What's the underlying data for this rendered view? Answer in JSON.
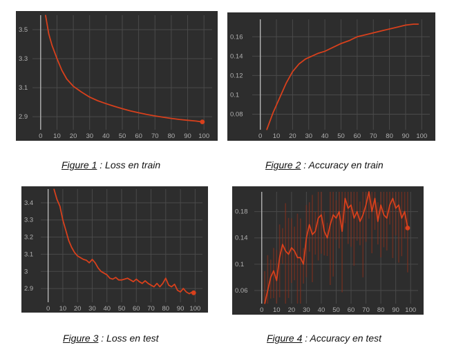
{
  "figures": [
    {
      "caption_fig": "Figure 1",
      "caption_text": " : Loss en train"
    },
    {
      "caption_fig": "Figure 2",
      "caption_text": " : Accuracy en train"
    },
    {
      "caption_fig": "Figure 3",
      "caption_text": " : Loss en test"
    },
    {
      "caption_fig": "Figure 4",
      "caption_text": " : Accuracy en test"
    }
  ],
  "colors": {
    "panel_bg": "#2d2d2d",
    "grid": "#4a4a4a",
    "axis": "#bdbdbd",
    "tick_text": "#b0b0b0",
    "line": "#d8401c",
    "noise": "#8a2e1a"
  },
  "chart_data": [
    {
      "type": "line",
      "title": "",
      "xlabel": "",
      "ylabel": "",
      "xlim": [
        -5,
        105
      ],
      "ylim": [
        2.81,
        3.6
      ],
      "xticks": [
        0,
        10,
        20,
        30,
        40,
        50,
        60,
        70,
        80,
        90,
        100
      ],
      "yticks": [
        2.9,
        3.1,
        3.3,
        3.5
      ],
      "grid": true,
      "end_marker": true,
      "series": [
        {
          "x": [
            3,
            5,
            7,
            10,
            13,
            16,
            20,
            25,
            30,
            35,
            40,
            45,
            50,
            55,
            60,
            65,
            70,
            75,
            80,
            85,
            90,
            95,
            99
          ],
          "y": [
            3.6,
            3.47,
            3.39,
            3.3,
            3.22,
            3.16,
            3.11,
            3.07,
            3.035,
            3.01,
            2.99,
            2.972,
            2.955,
            2.94,
            2.927,
            2.915,
            2.905,
            2.896,
            2.888,
            2.881,
            2.875,
            2.87,
            2.864
          ]
        }
      ]
    },
    {
      "type": "line",
      "title": "",
      "xlabel": "",
      "ylabel": "",
      "xlim": [
        -5,
        105
      ],
      "ylim": [
        0.064,
        0.178
      ],
      "xticks": [
        0,
        10,
        20,
        30,
        40,
        50,
        60,
        70,
        80,
        90,
        100
      ],
      "yticks": [
        0.08,
        0.1,
        0.12,
        0.14,
        0.16
      ],
      "grid": true,
      "end_marker": false,
      "series": [
        {
          "x": [
            4,
            8,
            12,
            16,
            20,
            24,
            28,
            32,
            36,
            40,
            45,
            50,
            55,
            60,
            65,
            70,
            75,
            80,
            85,
            90,
            95,
            98
          ],
          "y": [
            0.064,
            0.082,
            0.097,
            0.112,
            0.124,
            0.132,
            0.137,
            0.14,
            0.143,
            0.145,
            0.149,
            0.153,
            0.156,
            0.16,
            0.162,
            0.164,
            0.166,
            0.168,
            0.17,
            0.172,
            0.173,
            0.173
          ]
        }
      ]
    },
    {
      "type": "line",
      "title": "",
      "xlabel": "",
      "ylabel": "",
      "xlim": [
        -5,
        105
      ],
      "ylim": [
        2.82,
        3.48
      ],
      "xticks": [
        0,
        10,
        20,
        30,
        40,
        50,
        60,
        70,
        80,
        90,
        100
      ],
      "yticks": [
        2.9,
        3,
        3.1,
        3.2,
        3.3,
        3.4
      ],
      "grid": true,
      "end_marker": true,
      "series": [
        {
          "x": [
            4,
            6,
            8,
            10,
            12,
            14,
            16,
            18,
            20,
            22,
            24,
            26,
            28,
            30,
            32,
            34,
            36,
            38,
            40,
            42,
            44,
            46,
            48,
            50,
            52,
            54,
            56,
            58,
            60,
            62,
            64,
            66,
            68,
            70,
            72,
            74,
            76,
            78,
            80,
            82,
            84,
            86,
            88,
            90,
            92,
            94,
            96,
            98,
            99
          ],
          "y": [
            3.48,
            3.42,
            3.38,
            3.3,
            3.24,
            3.18,
            3.14,
            3.11,
            3.09,
            3.08,
            3.07,
            3.065,
            3.05,
            3.07,
            3.05,
            3.02,
            3.0,
            2.99,
            2.98,
            2.96,
            2.955,
            2.965,
            2.95,
            2.95,
            2.955,
            2.96,
            2.95,
            2.94,
            2.955,
            2.94,
            2.93,
            2.945,
            2.93,
            2.92,
            2.91,
            2.93,
            2.91,
            2.93,
            2.96,
            2.92,
            2.91,
            2.925,
            2.89,
            2.88,
            2.9,
            2.88,
            2.87,
            2.88,
            2.875
          ]
        }
      ]
    },
    {
      "type": "line",
      "title": "",
      "xlabel": "",
      "ylabel": "",
      "xlim": [
        -5,
        105
      ],
      "ylim": [
        0.04,
        0.21
      ],
      "xticks": [
        0,
        10,
        20,
        30,
        40,
        50,
        60,
        70,
        80,
        90,
        100
      ],
      "yticks": [
        0.06,
        0.1,
        0.14,
        0.18
      ],
      "grid": true,
      "end_marker": true,
      "noise_band": true,
      "series": [
        {
          "x": [
            2,
            4,
            6,
            8,
            10,
            12,
            14,
            16,
            18,
            20,
            22,
            24,
            26,
            28,
            30,
            32,
            34,
            36,
            38,
            40,
            42,
            44,
            46,
            48,
            50,
            52,
            54,
            56,
            58,
            60,
            62,
            64,
            66,
            68,
            70,
            72,
            74,
            76,
            78,
            80,
            82,
            84,
            86,
            88,
            90,
            92,
            94,
            96,
            98
          ],
          "y": [
            0.04,
            0.06,
            0.08,
            0.09,
            0.075,
            0.11,
            0.13,
            0.12,
            0.115,
            0.125,
            0.12,
            0.11,
            0.11,
            0.1,
            0.14,
            0.16,
            0.145,
            0.15,
            0.17,
            0.175,
            0.15,
            0.14,
            0.16,
            0.175,
            0.17,
            0.18,
            0.15,
            0.2,
            0.185,
            0.19,
            0.17,
            0.18,
            0.165,
            0.175,
            0.19,
            0.21,
            0.18,
            0.2,
            0.165,
            0.19,
            0.175,
            0.17,
            0.19,
            0.2,
            0.185,
            0.19,
            0.17,
            0.18,
            0.155
          ]
        }
      ]
    }
  ]
}
